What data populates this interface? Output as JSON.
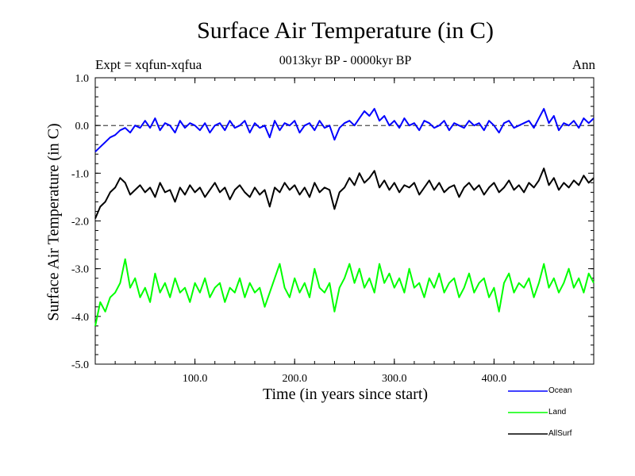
{
  "chart_data": {
    "type": "line",
    "title": "Surface Air Temperature (in C)",
    "subtitle": "0013kyr BP - 0000kyr BP",
    "left_label": "Expt = xqfun-xqfua",
    "right_label": "Ann",
    "xlabel": "Time (in years since start)",
    "ylabel": "Surface Air Temperature (in C)",
    "xlim": [
      0,
      500
    ],
    "ylim": [
      -5.0,
      1.0
    ],
    "xticks": [
      100,
      200,
      300,
      400
    ],
    "xtick_labels": [
      "100.0",
      "200.0",
      "300.0",
      "400.0"
    ],
    "yticks": [
      1.0,
      0.0,
      -1.0,
      -2.0,
      -3.0,
      -4.0,
      -5.0
    ],
    "ytick_labels": [
      "1.0",
      "0.0",
      "-1.0",
      "-2.0",
      "-3.0",
      "-4.0",
      "-5.0"
    ],
    "reference_line": 0.0,
    "series": [
      {
        "name": "Ocean",
        "color": "#0000ff",
        "x": [
          0,
          5,
          10,
          15,
          20,
          25,
          30,
          35,
          40,
          45,
          50,
          55,
          60,
          65,
          70,
          75,
          80,
          85,
          90,
          95,
          100,
          105,
          110,
          115,
          120,
          125,
          130,
          135,
          140,
          145,
          150,
          155,
          160,
          165,
          170,
          175,
          180,
          185,
          190,
          195,
          200,
          205,
          210,
          215,
          220,
          225,
          230,
          235,
          240,
          245,
          250,
          255,
          260,
          265,
          270,
          275,
          280,
          285,
          290,
          295,
          300,
          305,
          310,
          315,
          320,
          325,
          330,
          335,
          340,
          345,
          350,
          355,
          360,
          365,
          370,
          375,
          380,
          385,
          390,
          395,
          400,
          405,
          410,
          415,
          420,
          425,
          430,
          435,
          440,
          445,
          450,
          455,
          460,
          465,
          470,
          475,
          480,
          485,
          490,
          495,
          500
        ],
        "values": [
          -0.55,
          -0.45,
          -0.35,
          -0.25,
          -0.2,
          -0.1,
          -0.05,
          -0.15,
          0.0,
          -0.05,
          0.1,
          -0.05,
          0.15,
          -0.1,
          0.05,
          0.0,
          -0.15,
          0.1,
          -0.05,
          0.05,
          0.0,
          -0.1,
          0.05,
          -0.15,
          0.0,
          0.05,
          -0.1,
          0.1,
          -0.05,
          0.0,
          0.1,
          -0.15,
          0.05,
          -0.05,
          0.0,
          -0.25,
          0.1,
          -0.1,
          0.05,
          0.0,
          0.1,
          -0.15,
          0.0,
          0.05,
          -0.1,
          0.1,
          -0.05,
          0.0,
          -0.3,
          -0.05,
          0.05,
          0.1,
          0.0,
          0.15,
          0.3,
          0.2,
          0.35,
          0.1,
          0.2,
          0.0,
          0.1,
          -0.05,
          0.15,
          0.0,
          0.05,
          -0.1,
          0.1,
          0.05,
          -0.05,
          0.0,
          0.1,
          -0.1,
          0.05,
          0.0,
          -0.05,
          0.1,
          0.0,
          0.05,
          -0.1,
          0.1,
          0.0,
          -0.15,
          0.05,
          0.1,
          -0.05,
          0.0,
          0.05,
          0.1,
          -0.05,
          0.15,
          0.35,
          0.05,
          0.2,
          -0.1,
          0.05,
          0.0,
          0.1,
          -0.05,
          0.15,
          0.05,
          0.15
        ]
      },
      {
        "name": "Land",
        "color": "#00ff00",
        "x": [
          0,
          5,
          10,
          15,
          20,
          25,
          30,
          35,
          40,
          45,
          50,
          55,
          60,
          65,
          70,
          75,
          80,
          85,
          90,
          95,
          100,
          105,
          110,
          115,
          120,
          125,
          130,
          135,
          140,
          145,
          150,
          155,
          160,
          165,
          170,
          175,
          180,
          185,
          190,
          195,
          200,
          205,
          210,
          215,
          220,
          225,
          230,
          235,
          240,
          245,
          250,
          255,
          260,
          265,
          270,
          275,
          280,
          285,
          290,
          295,
          300,
          305,
          310,
          315,
          320,
          325,
          330,
          335,
          340,
          345,
          350,
          355,
          360,
          365,
          370,
          375,
          380,
          385,
          390,
          395,
          400,
          405,
          410,
          415,
          420,
          425,
          430,
          435,
          440,
          445,
          450,
          455,
          460,
          465,
          470,
          475,
          480,
          485,
          490,
          495,
          500
        ],
        "values": [
          -4.2,
          -3.7,
          -3.9,
          -3.6,
          -3.5,
          -3.3,
          -2.8,
          -3.4,
          -3.2,
          -3.6,
          -3.4,
          -3.7,
          -3.1,
          -3.5,
          -3.3,
          -3.6,
          -3.2,
          -3.5,
          -3.4,
          -3.7,
          -3.3,
          -3.5,
          -3.2,
          -3.6,
          -3.4,
          -3.3,
          -3.7,
          -3.4,
          -3.5,
          -3.2,
          -3.6,
          -3.3,
          -3.5,
          -3.4,
          -3.8,
          -3.5,
          -3.2,
          -2.9,
          -3.4,
          -3.6,
          -3.2,
          -3.5,
          -3.3,
          -3.6,
          -3.0,
          -3.4,
          -3.5,
          -3.3,
          -3.9,
          -3.4,
          -3.2,
          -2.9,
          -3.3,
          -3.0,
          -3.4,
          -3.2,
          -3.5,
          -2.9,
          -3.3,
          -3.1,
          -3.4,
          -3.2,
          -3.5,
          -3.0,
          -3.4,
          -3.3,
          -3.6,
          -3.2,
          -3.4,
          -3.1,
          -3.5,
          -3.3,
          -3.2,
          -3.6,
          -3.4,
          -3.1,
          -3.5,
          -3.3,
          -3.2,
          -3.6,
          -3.4,
          -3.9,
          -3.3,
          -3.1,
          -3.5,
          -3.3,
          -3.4,
          -3.2,
          -3.6,
          -3.3,
          -2.9,
          -3.4,
          -3.2,
          -3.5,
          -3.3,
          -3.0,
          -3.4,
          -3.2,
          -3.5,
          -3.1,
          -3.3
        ]
      },
      {
        "name": "AllSurf",
        "color": "#000000",
        "x": [
          0,
          5,
          10,
          15,
          20,
          25,
          30,
          35,
          40,
          45,
          50,
          55,
          60,
          65,
          70,
          75,
          80,
          85,
          90,
          95,
          100,
          105,
          110,
          115,
          120,
          125,
          130,
          135,
          140,
          145,
          150,
          155,
          160,
          165,
          170,
          175,
          180,
          185,
          190,
          195,
          200,
          205,
          210,
          215,
          220,
          225,
          230,
          235,
          240,
          245,
          250,
          255,
          260,
          265,
          270,
          275,
          280,
          285,
          290,
          295,
          300,
          305,
          310,
          315,
          320,
          325,
          330,
          335,
          340,
          345,
          350,
          355,
          360,
          365,
          370,
          375,
          380,
          385,
          390,
          395,
          400,
          405,
          410,
          415,
          420,
          425,
          430,
          435,
          440,
          445,
          450,
          455,
          460,
          465,
          470,
          475,
          480,
          485,
          490,
          495,
          500
        ],
        "values": [
          -1.95,
          -1.7,
          -1.6,
          -1.4,
          -1.3,
          -1.1,
          -1.2,
          -1.45,
          -1.35,
          -1.25,
          -1.4,
          -1.3,
          -1.5,
          -1.2,
          -1.4,
          -1.35,
          -1.6,
          -1.3,
          -1.45,
          -1.25,
          -1.4,
          -1.3,
          -1.5,
          -1.35,
          -1.2,
          -1.4,
          -1.3,
          -1.55,
          -1.35,
          -1.25,
          -1.4,
          -1.5,
          -1.3,
          -1.45,
          -1.35,
          -1.7,
          -1.3,
          -1.4,
          -1.2,
          -1.35,
          -1.25,
          -1.45,
          -1.3,
          -1.5,
          -1.2,
          -1.4,
          -1.3,
          -1.35,
          -1.75,
          -1.4,
          -1.3,
          -1.1,
          -1.25,
          -1.0,
          -1.2,
          -1.1,
          -0.95,
          -1.3,
          -1.15,
          -1.35,
          -1.2,
          -1.4,
          -1.25,
          -1.3,
          -1.2,
          -1.45,
          -1.3,
          -1.15,
          -1.35,
          -1.2,
          -1.4,
          -1.3,
          -1.25,
          -1.5,
          -1.3,
          -1.2,
          -1.35,
          -1.25,
          -1.45,
          -1.3,
          -1.2,
          -1.4,
          -1.3,
          -1.15,
          -1.35,
          -1.25,
          -1.4,
          -1.2,
          -1.3,
          -1.15,
          -0.9,
          -1.25,
          -1.1,
          -1.35,
          -1.2,
          -1.3,
          -1.15,
          -1.25,
          -1.05,
          -1.2,
          -1.1
        ]
      }
    ]
  }
}
